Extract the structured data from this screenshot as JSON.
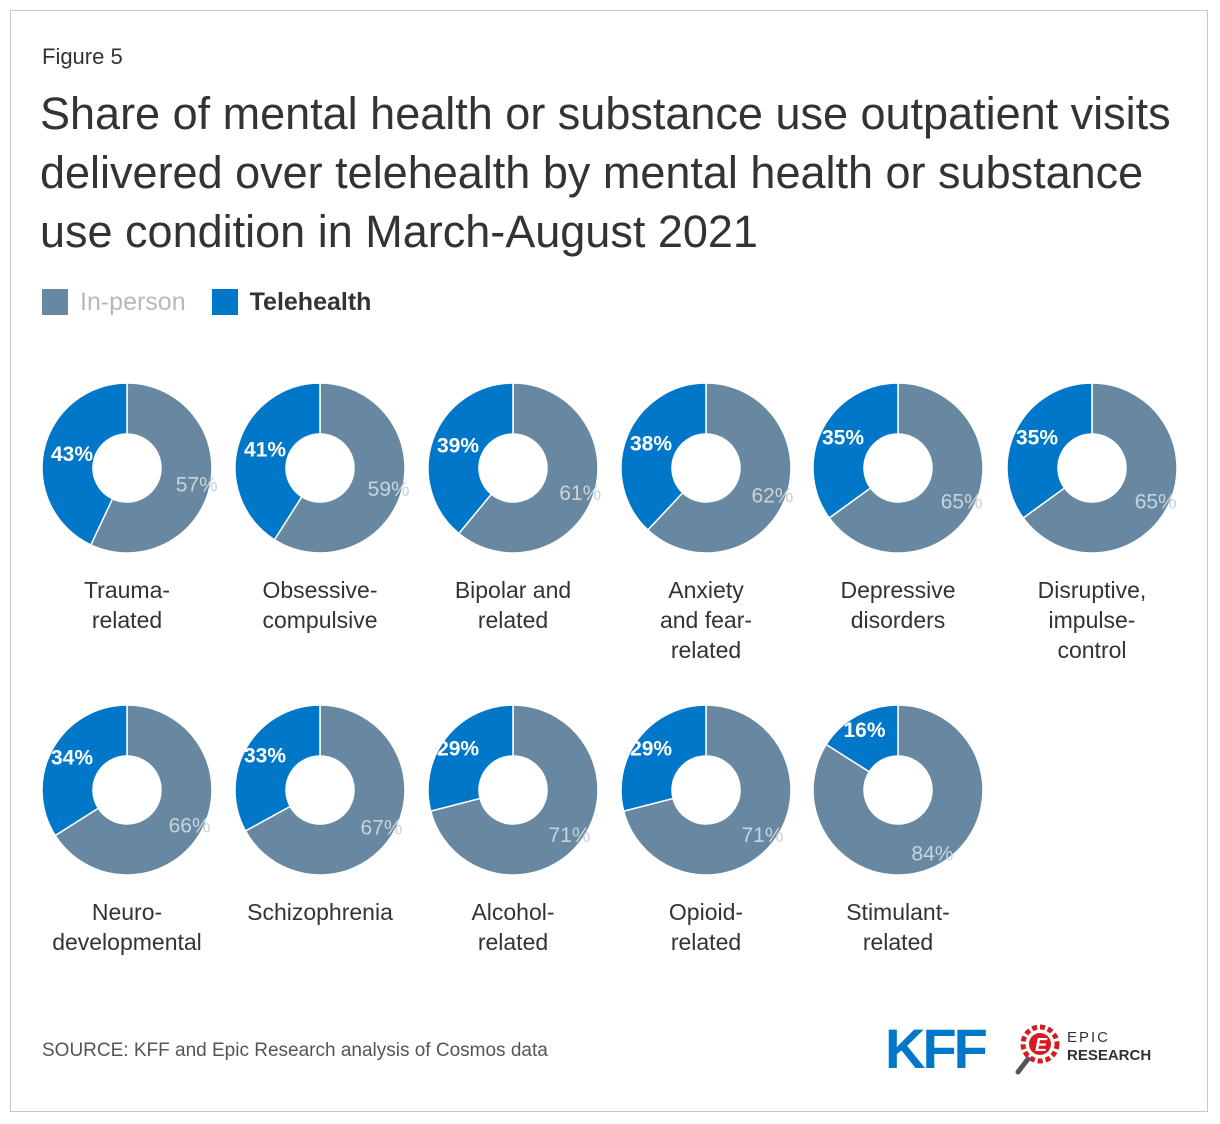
{
  "figure_label": "Figure 5",
  "title": "Share of mental health or substance use outpatient visits delivered over telehealth by mental health or substance use condition in March-August 2021",
  "legend": [
    {
      "key": "inperson",
      "label": "In-person",
      "color": "#6788a0"
    },
    {
      "key": "telehealth",
      "label": "Telehealth",
      "color": "#0077c8"
    }
  ],
  "source": "SOURCE: KFF and Epic Research analysis of Cosmos data",
  "logos": {
    "kff": "KFF",
    "epic_line1": "EPIC",
    "epic_line2": "RESEARCH",
    "epic_badge": "E"
  },
  "chart_data": {
    "type": "donut",
    "series_names": [
      "Telehealth",
      "In-person"
    ],
    "colors": {
      "telehealth": "#0077c8",
      "inperson": "#6788a0"
    },
    "charts": [
      {
        "label": [
          "Trauma-",
          "related"
        ],
        "telehealth": 43,
        "inperson": 57
      },
      {
        "label": [
          "Obsessive-",
          "compulsive"
        ],
        "telehealth": 41,
        "inperson": 59
      },
      {
        "label": [
          "Bipolar and",
          "related"
        ],
        "telehealth": 39,
        "inperson": 61
      },
      {
        "label": [
          "Anxiety",
          "and fear-",
          "related"
        ],
        "telehealth": 38,
        "inperson": 62
      },
      {
        "label": [
          "Depressive",
          "disorders"
        ],
        "telehealth": 35,
        "inperson": 65
      },
      {
        "label": [
          "Disruptive,",
          "impulse-",
          "control"
        ],
        "telehealth": 35,
        "inperson": 65
      },
      {
        "label": [
          "Neuro-",
          "developmental"
        ],
        "telehealth": 34,
        "inperson": 66
      },
      {
        "label": [
          "Schizophrenia"
        ],
        "telehealth": 33,
        "inperson": 67
      },
      {
        "label": [
          "Alcohol-",
          "related"
        ],
        "telehealth": 29,
        "inperson": 71
      },
      {
        "label": [
          "Opioid-",
          "related"
        ],
        "telehealth": 29,
        "inperson": 71
      },
      {
        "label": [
          "Stimulant-",
          "related"
        ],
        "telehealth": 16,
        "inperson": 84
      }
    ]
  }
}
